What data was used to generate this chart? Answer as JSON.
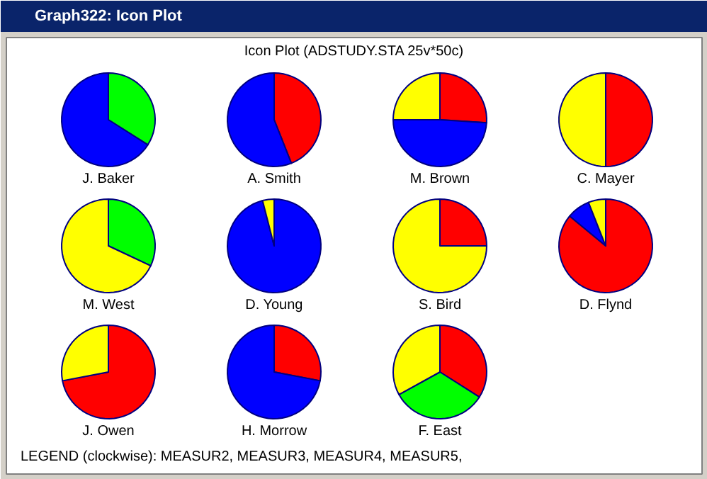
{
  "chart_data": [
    {
      "type": "other",
      "title": "Icon Plot (ADSTUDY.STA 25v*50c)",
      "annotations": [
        "Graph322: Icon Plot",
        "LEGEND (clockwise):   MEASUR2,  MEASUR3,  MEASUR4,  MEASUR5,"
      ]
    },
    {
      "type": "pie",
      "title": "J. Baker",
      "categories": [
        null,
        null,
        null,
        null
      ],
      "values": [
        0,
        34,
        66,
        0
      ],
      "colors": [
        "#ff0000",
        "#00ff00",
        "#0000ff",
        "#ffff00"
      ]
    },
    {
      "type": "pie",
      "title": "A. Smith",
      "categories": [
        null,
        null,
        null,
        null
      ],
      "values": [
        44,
        0,
        56,
        0
      ],
      "colors": [
        "#ff0000",
        "#00ff00",
        "#0000ff",
        "#ffff00"
      ]
    },
    {
      "type": "pie",
      "title": "M. Brown",
      "categories": [
        null,
        null,
        null,
        null
      ],
      "values": [
        26,
        0,
        49,
        25
      ],
      "colors": [
        "#ff0000",
        "#00ff00",
        "#0000ff",
        "#ffff00"
      ]
    },
    {
      "type": "pie",
      "title": "C. Mayer",
      "categories": [
        null,
        null,
        null,
        null
      ],
      "values": [
        50,
        0,
        0,
        50
      ],
      "colors": [
        "#ff0000",
        "#00ff00",
        "#0000ff",
        "#ffff00"
      ]
    },
    {
      "type": "pie",
      "title": "M. West",
      "categories": [
        null,
        null,
        null,
        null
      ],
      "values": [
        0,
        32,
        0,
        68
      ],
      "colors": [
        "#ff0000",
        "#00ff00",
        "#0000ff",
        "#ffff00"
      ]
    },
    {
      "type": "pie",
      "title": "D. Young",
      "categories": [
        null,
        null,
        null,
        null
      ],
      "values": [
        0,
        0,
        96,
        4
      ],
      "colors": [
        "#ff0000",
        "#00ff00",
        "#0000ff",
        "#ffff00"
      ]
    },
    {
      "type": "pie",
      "title": "S. Bird",
      "categories": [
        null,
        null,
        null,
        null
      ],
      "values": [
        25,
        0,
        0,
        75
      ],
      "colors": [
        "#ff0000",
        "#00ff00",
        "#0000ff",
        "#ffff00"
      ]
    },
    {
      "type": "pie",
      "title": "D. Flynd",
      "categories": [
        null,
        null,
        null,
        null
      ],
      "values": [
        86,
        0,
        8,
        6
      ],
      "colors": [
        "#ff0000",
        "#00ff00",
        "#0000ff",
        "#ffff00"
      ]
    },
    {
      "type": "pie",
      "title": "J. Owen",
      "categories": [
        null,
        null,
        null,
        null
      ],
      "values": [
        72,
        0,
        0,
        28
      ],
      "colors": [
        "#ff0000",
        "#00ff00",
        "#0000ff",
        "#ffff00"
      ]
    },
    {
      "type": "pie",
      "title": "H. Morrow",
      "categories": [
        null,
        null,
        null,
        null
      ],
      "values": [
        28,
        0,
        72,
        0
      ],
      "colors": [
        "#ff0000",
        "#00ff00",
        "#0000ff",
        "#ffff00"
      ]
    },
    {
      "type": "pie",
      "title": "F. East",
      "categories": [
        null,
        null,
        null,
        null
      ],
      "values": [
        34,
        33,
        0,
        33
      ],
      "colors": [
        "#ff0000",
        "#00ff00",
        "#0000ff",
        "#ffff00"
      ]
    }
  ]
}
